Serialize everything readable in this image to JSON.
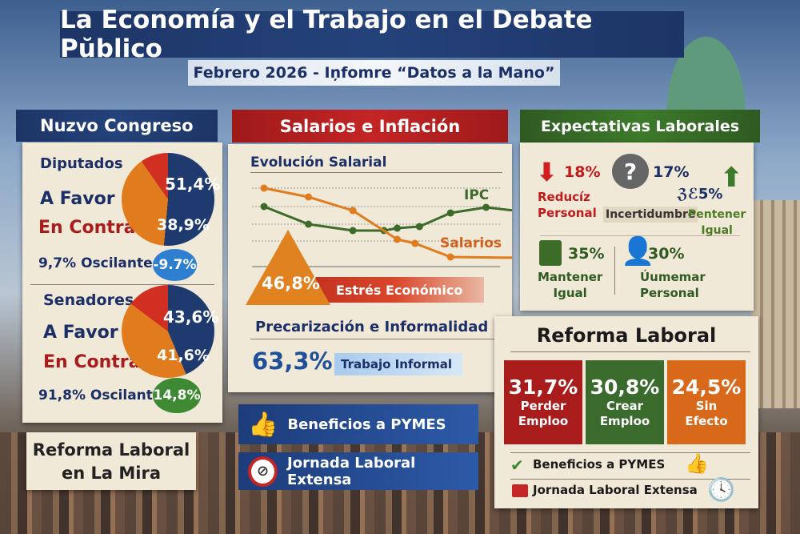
{
  "header": {
    "title": "La Economía y el Trabajo en el Debate Pŭblico",
    "subtitle": "Febrero 2026 - Iņfomre “Datos a la Mano”"
  },
  "congreso": {
    "title": "Nuzvo Congreso",
    "diputados": {
      "label": "Diputados",
      "favor_label": "A Favor",
      "contra_label": "En Contra",
      "favor": "51,4%",
      "contra": "38,9%",
      "oscilantes_text": "9,7% Oscilantes",
      "badge": "-9.7%",
      "favor_value": 51.4,
      "contra_value": 38.9
    },
    "senadores": {
      "label": "Senadores",
      "favor_label": "A Favor",
      "contra_label": "En Contra",
      "favor": "43,6%",
      "contra": "41,6%",
      "oscilantes_text": "91,8% Oscilantel",
      "badge": "14,8%",
      "favor_value": 43.6,
      "contra_value": 41.6
    }
  },
  "mira": {
    "line1": "Reforma Laboral",
    "line2": "en La Mira"
  },
  "salarios": {
    "title": "Salarios e Inflación",
    "chart_title": "Evolución Salarial",
    "stress_value": "46,8%",
    "stress_label": "Estrés Económico",
    "prec_title": "Precarización e Informalidad",
    "informal_value": "63,3%",
    "informal_label": "Trabajo Informal"
  },
  "chart_data": {
    "type": "line",
    "title": "Evolución Salarial",
    "xlabel": "",
    "ylabel": "",
    "grid": true,
    "series": [
      {
        "name": "IPC",
        "color": "#3d6b2a",
        "x": [
          0,
          1,
          2,
          2.7,
          3,
          3.5,
          4.2,
          5,
          5.8
        ],
        "values": [
          82,
          60,
          52,
          52,
          55,
          57,
          74,
          81,
          76
        ]
      },
      {
        "name": "Salarios",
        "color": "#e07b1e",
        "x": [
          0,
          1,
          2,
          3,
          3.4,
          4.2,
          5.8
        ],
        "values": [
          105,
          94,
          77,
          41,
          36,
          19,
          18
        ]
      }
    ]
  },
  "buttons": {
    "pymes": "Beneficios a PYMES",
    "jornada": "Jornada Laboral Extensa"
  },
  "expectativas": {
    "title": "Expectativas Laborales",
    "items": [
      {
        "value": "18%",
        "label1": "Reducíz",
        "label2": "Personal",
        "color": "#c01a1a"
      },
      {
        "value": "17%",
        "label1": "Incertidumbre",
        "label2": "",
        "color": "#1b2f66"
      },
      {
        "value": "ℨℰ5%",
        "label1": "Pentener",
        "label2": "Igual",
        "color": "#3d6b2a"
      },
      {
        "value": "35%",
        "label1": "Mantener",
        "label2": "Igual",
        "color": "#2f5a22"
      },
      {
        "value": "30%",
        "label1": "Úumemar",
        "label2": "Personal",
        "color": "#2f5a22"
      }
    ]
  },
  "reforma": {
    "title": "Reforma Laboral",
    "boxes": [
      {
        "value": "31,7%",
        "label1": "Perder",
        "label2": "Emploo",
        "color": "#a81c1c"
      },
      {
        "value": "30,8%",
        "label1": "Crear",
        "label2": "Emploo",
        "color": "#3a6b2c"
      },
      {
        "value": "24,5%",
        "label1": "Sin",
        "label2": "Efecto",
        "color": "#d9691a"
      }
    ],
    "pymes": "Beneficios a PYMES",
    "jornada": "Jornada Laboral Extensa"
  }
}
